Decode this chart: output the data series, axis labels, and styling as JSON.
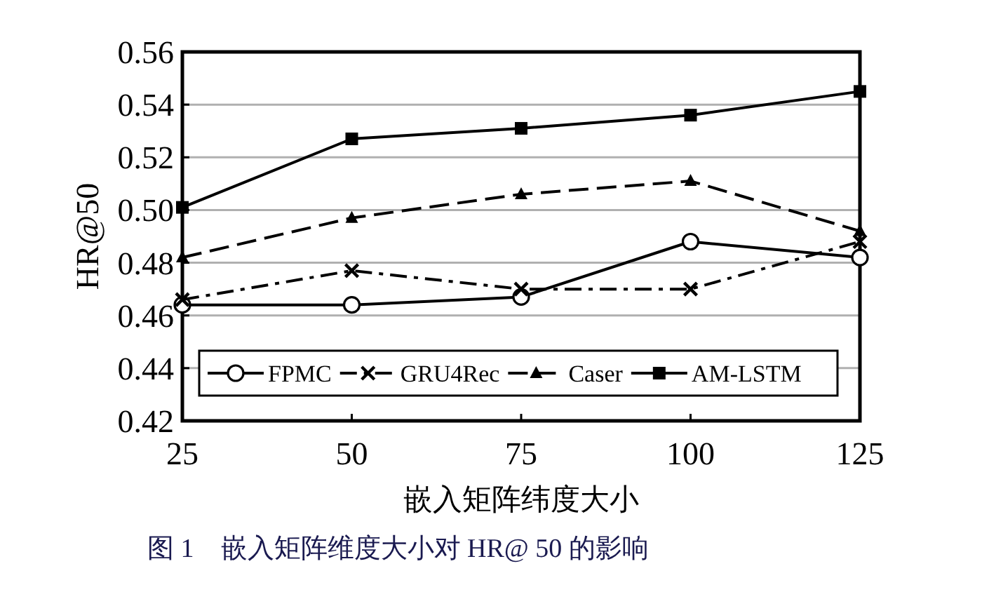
{
  "chart_data": {
    "type": "line",
    "xlabel": "嵌入矩阵纬度大小",
    "ylabel": "HR@50",
    "x": [
      25,
      50,
      75,
      100,
      125
    ],
    "xlim": [
      25,
      125
    ],
    "xticks": [
      25,
      50,
      75,
      100,
      125
    ],
    "ylim": [
      0.42,
      0.56
    ],
    "yticks": [
      {
        "value": 0.42,
        "label": "0.42"
      },
      {
        "value": 0.44,
        "label": "0.44"
      },
      {
        "value": 0.46,
        "label": "0.46"
      },
      {
        "value": 0.48,
        "label": "0.48"
      },
      {
        "value": 0.5,
        "label": "0.50"
      },
      {
        "value": 0.52,
        "label": "0.52"
      },
      {
        "value": 0.54,
        "label": "0.54"
      },
      {
        "value": 0.56,
        "label": "0.56"
      }
    ],
    "grid": "y",
    "legend": "bottom",
    "series": [
      {
        "name": "FPMC",
        "color": "#000000",
        "marker": "circle",
        "line_style": "solid",
        "values": [
          0.464,
          0.464,
          0.467,
          0.488,
          0.482
        ]
      },
      {
        "name": "GRU4Rec",
        "color": "#000000",
        "marker": "cross",
        "line_style": "dashdot",
        "values": [
          0.466,
          0.477,
          0.47,
          0.47,
          0.488
        ]
      },
      {
        "name": "Caser",
        "color": "#000000",
        "marker": "triangle",
        "line_style": "dashed",
        "values": [
          0.482,
          0.497,
          0.506,
          0.511,
          0.492
        ]
      },
      {
        "name": "AM-LSTM",
        "color": "#000000",
        "marker": "square",
        "line_style": "solid",
        "values": [
          0.501,
          0.527,
          0.531,
          0.536,
          0.545
        ]
      }
    ],
    "annotations": [
      "图 1　嵌入矩阵维度大小对 HR@ 50 的影响"
    ]
  }
}
